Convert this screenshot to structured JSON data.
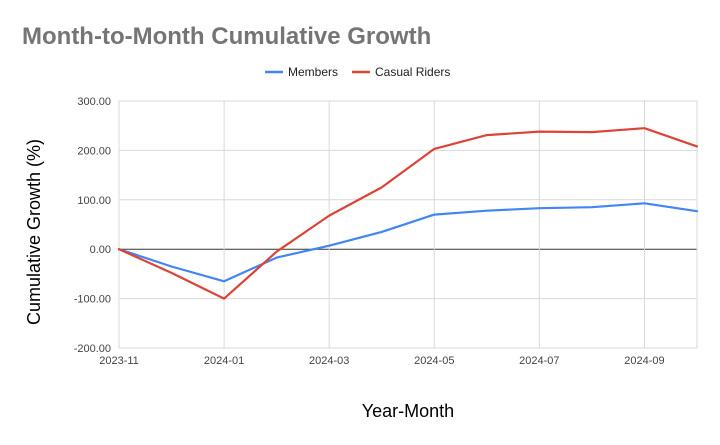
{
  "chart_data": {
    "type": "line",
    "title": "Month-to-Month Cumulative Growth",
    "xlabel": "Year-Month",
    "ylabel": "Cumulative Growth (%)",
    "x": [
      "2023-11",
      "2023-12",
      "2024-01",
      "2024-02",
      "2024-03",
      "2024-04",
      "2024-05",
      "2024-06",
      "2024-07",
      "2024-08",
      "2024-09",
      "2024-10"
    ],
    "x_tick_labels": [
      "2023-11",
      "2024-01",
      "2024-03",
      "2024-05",
      "2024-07",
      "2024-09"
    ],
    "y_tick_labels": [
      "300.00",
      "200.00",
      "100.00",
      "0.00",
      "-100.00",
      "-200.00"
    ],
    "ylim": [
      -200,
      300
    ],
    "y_ticks": [
      300,
      200,
      100,
      0,
      -100,
      -200
    ],
    "grid": true,
    "legend_position": "top",
    "series": [
      {
        "name": "Members",
        "color": "#4285f4",
        "values": [
          0,
          -35,
          -65,
          -17,
          7,
          35,
          70,
          78,
          83,
          85,
          93,
          77
        ]
      },
      {
        "name": "Casual Riders",
        "color": "#db4437",
        "values": [
          0,
          -48,
          -100,
          -5,
          68,
          125,
          203,
          231,
          238,
          237,
          245,
          208
        ]
      }
    ]
  }
}
